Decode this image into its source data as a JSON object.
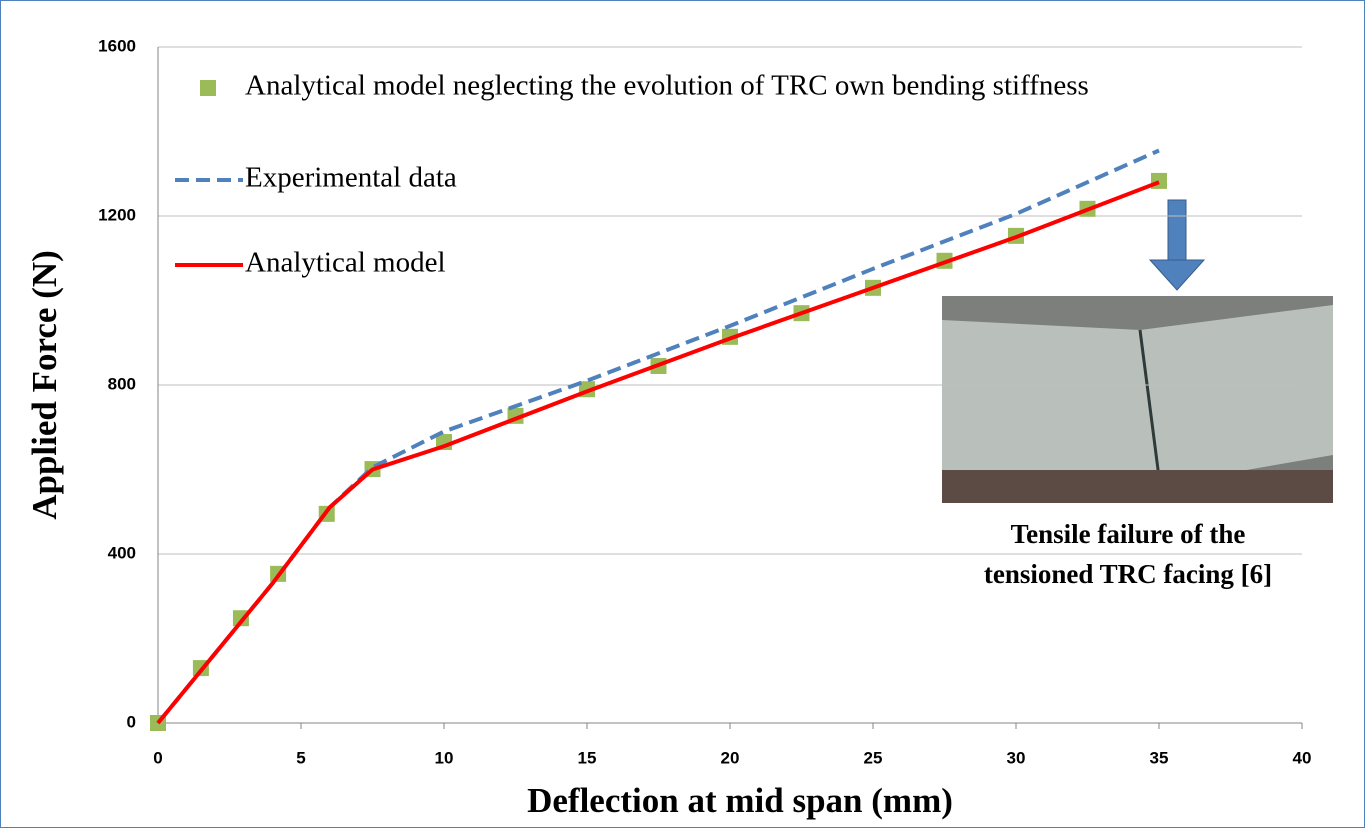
{
  "chart_data": {
    "type": "line",
    "xlabel": "Deflection at mid span (mm)",
    "ylabel": "Applied Force (N)",
    "xlim": [
      0,
      40
    ],
    "xticks": [
      0,
      5,
      10,
      15,
      20,
      25,
      30,
      35,
      40
    ],
    "ylim": [
      0,
      1600
    ],
    "yticks": [
      0,
      400,
      800,
      1200,
      1600
    ],
    "grid": true,
    "legend": "upper left",
    "series": [
      {
        "name": "Analytical model neglecting the evolution of TRC own bending stiffness",
        "color": "#9bbb59",
        "style": "marker",
        "x": [
          0,
          1.5,
          2.9,
          4.2,
          5.9,
          7.5,
          10,
          12.5,
          15,
          17.5,
          20,
          22.5,
          25,
          27.5,
          30,
          32.5,
          35
        ],
        "values": [
          0,
          130,
          248,
          353,
          495,
          601,
          665,
          727,
          790,
          845,
          914,
          970,
          1030,
          1094,
          1153,
          1217,
          1283
        ]
      },
      {
        "name": "Experimental data",
        "color": "#4f81bd",
        "style": "dashed",
        "x": [
          0,
          4,
          6,
          7.5,
          10,
          15,
          20,
          25,
          30,
          35
        ],
        "values": [
          0,
          330,
          510,
          605,
          690,
          810,
          940,
          1075,
          1205,
          1355
        ]
      },
      {
        "name": "Analytical model",
        "color": "#ff0000",
        "style": "solid",
        "x": [
          0,
          4,
          6,
          7.5,
          10,
          15,
          20,
          25,
          30,
          35
        ],
        "values": [
          0,
          330,
          510,
          600,
          655,
          785,
          910,
          1030,
          1150,
          1280
        ]
      }
    ],
    "annotations": [
      "Tensile failure of the",
      "tensioned TRC facing [6]"
    ]
  }
}
